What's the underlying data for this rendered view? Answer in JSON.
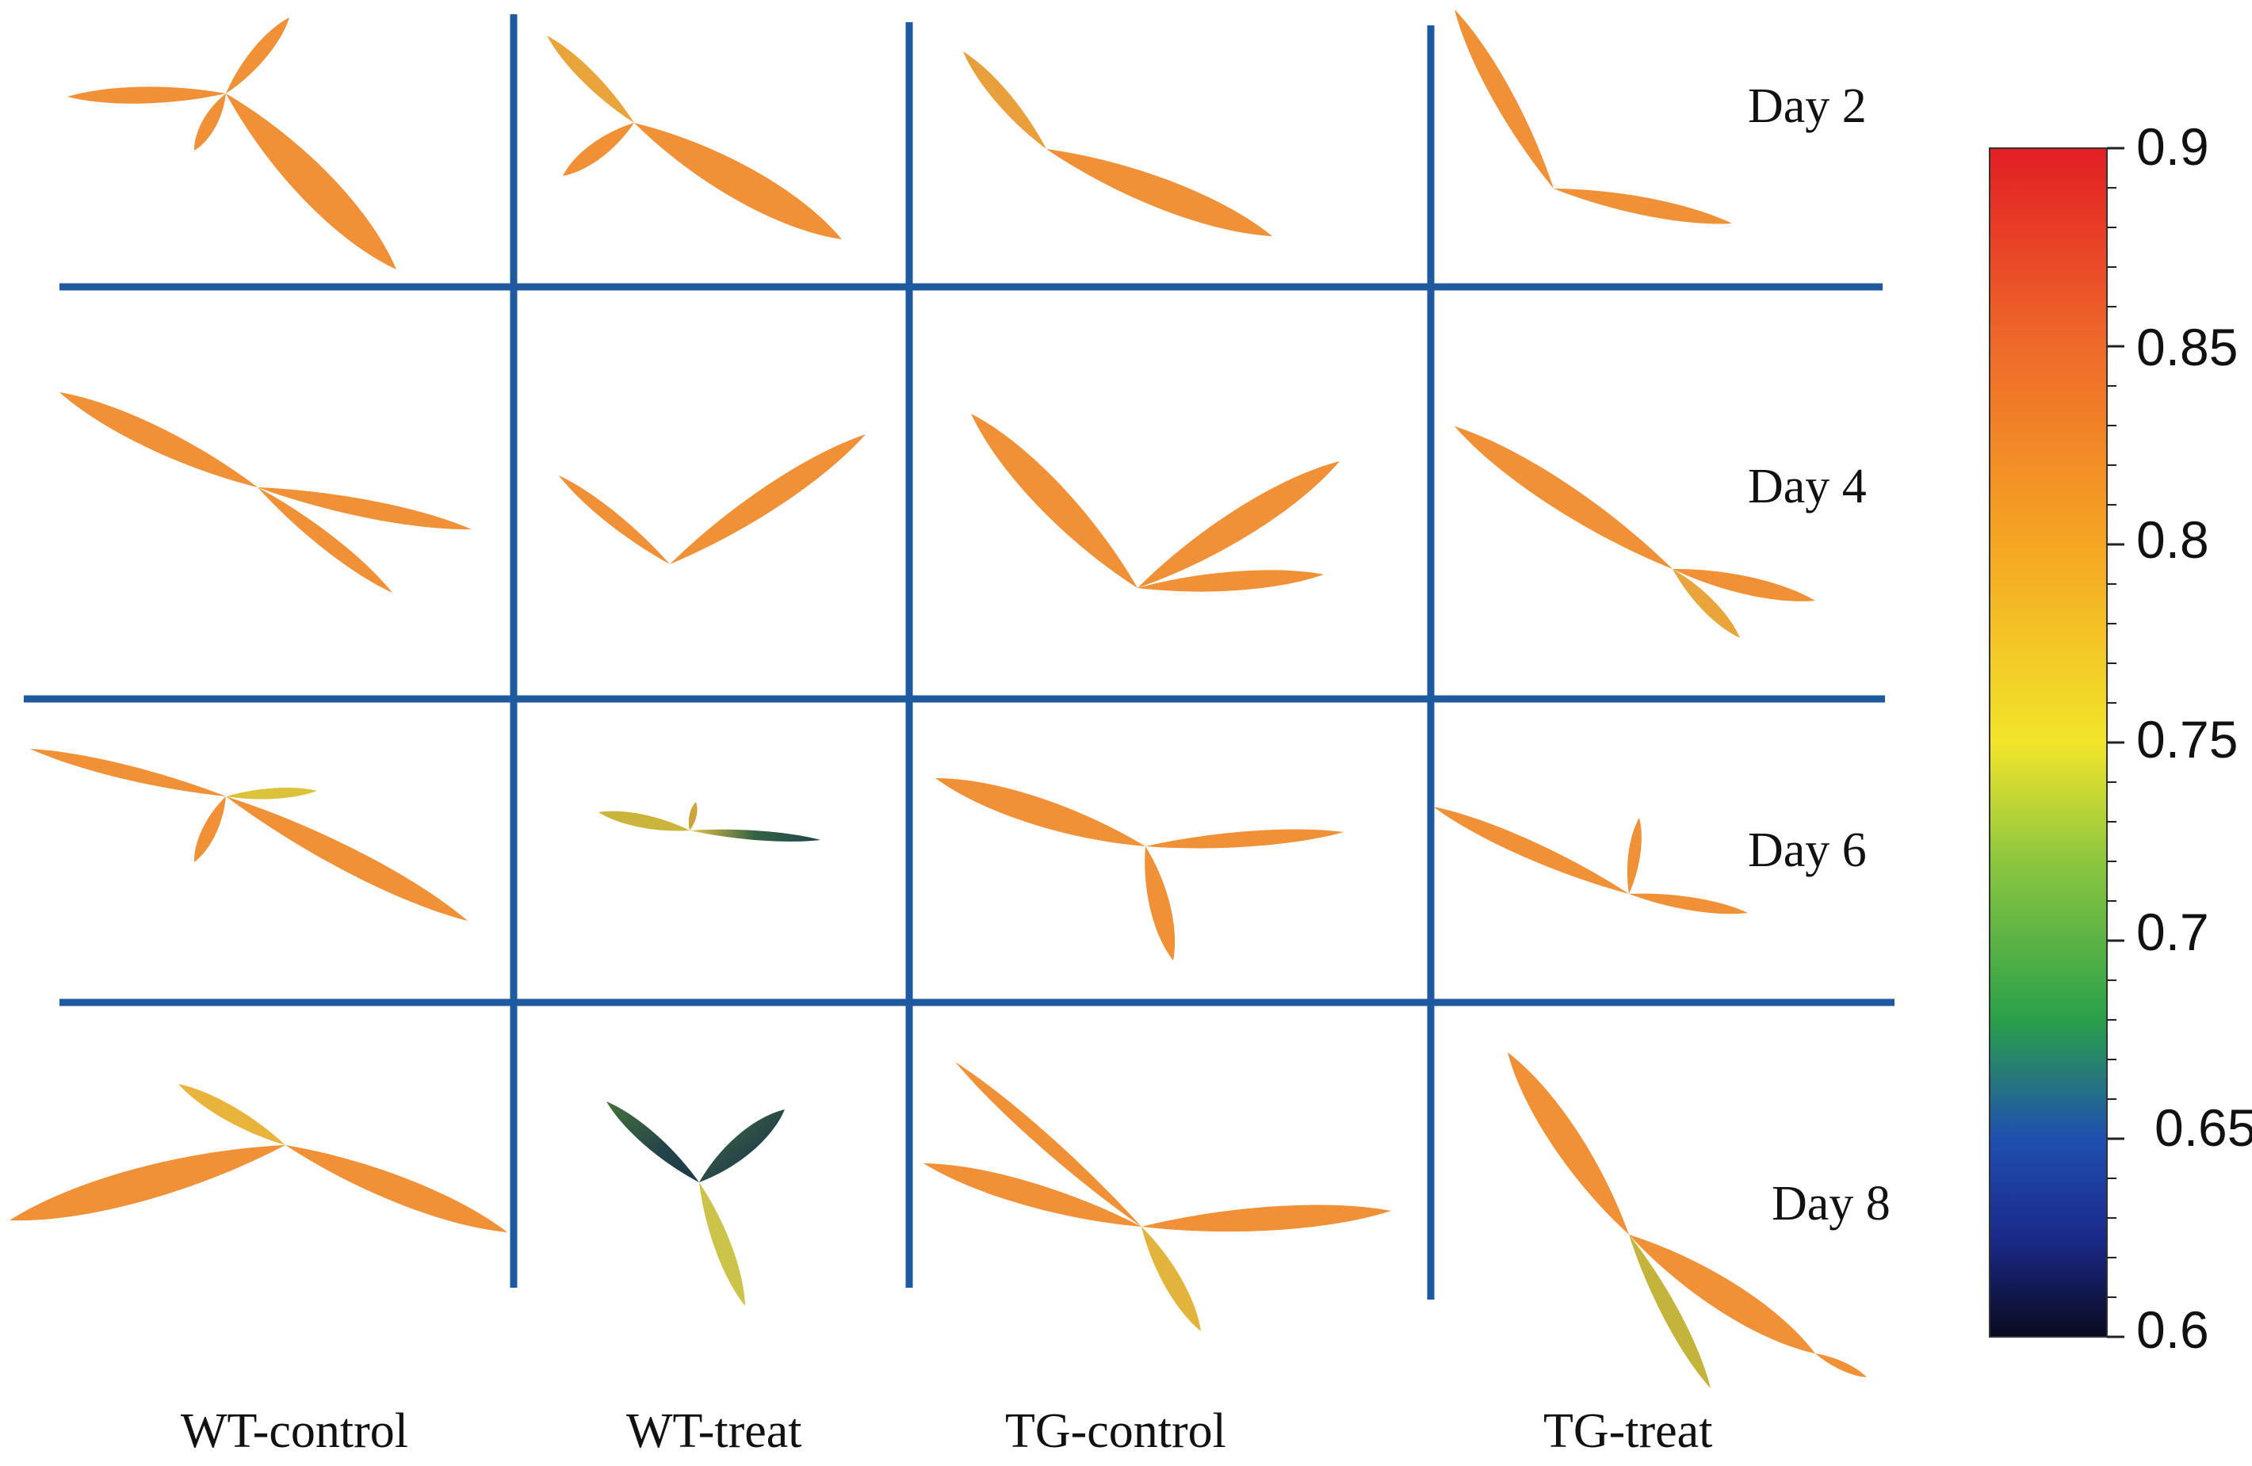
{
  "row_labels": [
    "Day 2",
    "Day 4",
    "Day 6",
    "Day 8"
  ],
  "column_labels": [
    "WT-control",
    "WT-treat",
    "TG-control",
    "TG-treat"
  ],
  "colorbar": {
    "min": 0.6,
    "max": 0.9,
    "ticks": [
      "0.9",
      "0.85",
      "0.8",
      "0.75",
      "0.7",
      "0.65",
      "0.6"
    ],
    "gradient": [
      {
        "value": 0.6,
        "color": "#0a0a1e"
      },
      {
        "value": 0.625,
        "color": "#1a2a8a"
      },
      {
        "value": 0.65,
        "color": "#1f4fb0"
      },
      {
        "value": 0.68,
        "color": "#2aa04a"
      },
      {
        "value": 0.72,
        "color": "#8cc63f"
      },
      {
        "value": 0.75,
        "color": "#f2e52a"
      },
      {
        "value": 0.8,
        "color": "#f5a623"
      },
      {
        "value": 0.85,
        "color": "#ee6a2a"
      },
      {
        "value": 0.9,
        "color": "#e31e24"
      }
    ]
  },
  "colors": {
    "grid_line": "#1f5aa0",
    "leaf_main": "#ef8a2c",
    "leaf_stressed": "#1b4a3a"
  }
}
